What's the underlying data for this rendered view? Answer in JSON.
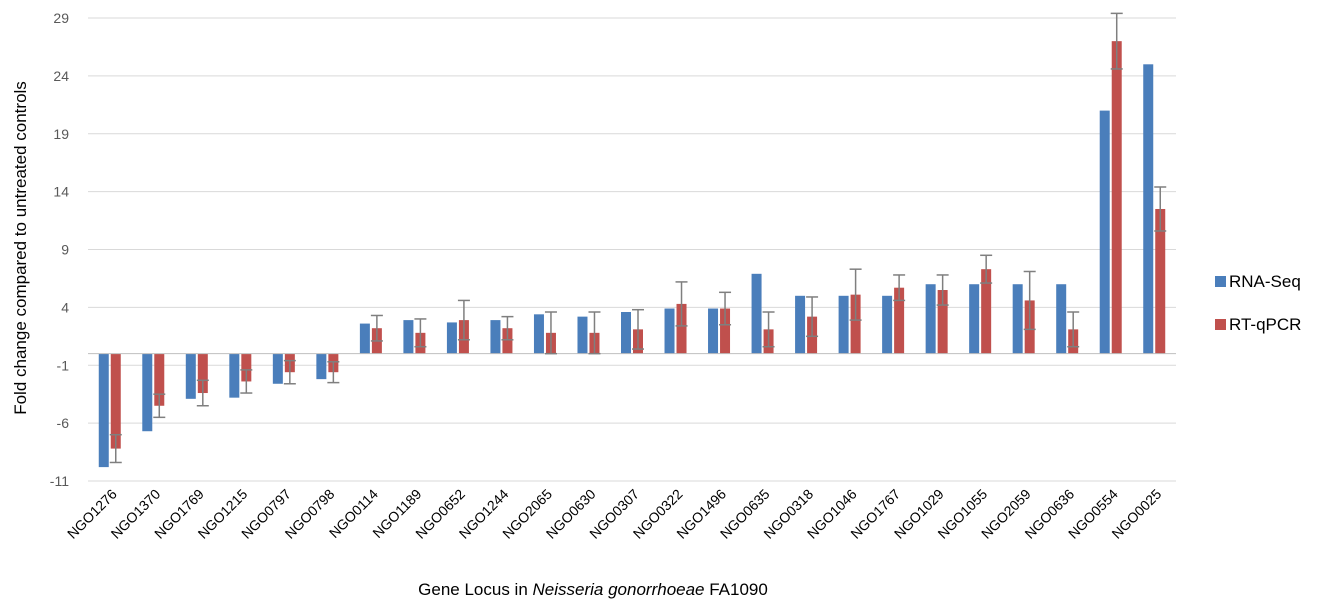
{
  "chart_data": {
    "type": "bar",
    "categories": [
      "NGO1276",
      "NGO1370",
      "NGO1769",
      "NGO1215",
      "NGO0797",
      "NGO0798",
      "NGO0114",
      "NGO1189",
      "NGO0652",
      "NGO1244",
      "NGO2065",
      "NGO0630",
      "NGO0307",
      "NGO0322",
      "NGO1496",
      "NGO0635",
      "NGO0318",
      "NGO1046",
      "NGO1767",
      "NGO1029",
      "NGO1055",
      "NGO2059",
      "NGO0636",
      "NGO0554",
      "NGO0025"
    ],
    "series": [
      {
        "name": "RNA-Seq",
        "values": [
          -9.8,
          -6.7,
          -3.9,
          -3.8,
          -2.6,
          -2.2,
          2.6,
          2.9,
          2.7,
          2.9,
          3.4,
          3.2,
          3.6,
          3.9,
          3.9,
          6.9,
          5.0,
          5.0,
          5.0,
          6.0,
          6.0,
          6.0,
          6.0,
          21.0,
          25.0
        ],
        "errors": null
      },
      {
        "name": "RT-qPCR",
        "values": [
          -8.2,
          -4.5,
          -3.4,
          -2.4,
          -1.6,
          -1.6,
          2.2,
          1.8,
          2.9,
          2.2,
          1.8,
          1.8,
          2.1,
          4.3,
          3.9,
          2.1,
          3.2,
          5.1,
          5.7,
          5.5,
          7.3,
          4.6,
          2.1,
          27.0,
          12.5
        ],
        "errors": [
          1.2,
          1.0,
          1.1,
          1.0,
          1.0,
          0.9,
          1.1,
          1.2,
          1.7,
          1.0,
          1.8,
          1.8,
          1.7,
          1.9,
          1.4,
          1.5,
          1.7,
          2.2,
          1.1,
          1.3,
          1.2,
          2.5,
          1.5,
          2.4,
          1.9
        ]
      }
    ],
    "colors": {
      "RNA-Seq": "#4a7ebb",
      "RT-qPCR": "#c0504d",
      "error_bar": "#7f7f7f",
      "grid": "#d9d9d9"
    },
    "ylim": [
      -11,
      29
    ],
    "yticks": [
      "29",
      "24",
      "19",
      "14",
      "9",
      "4",
      "-1",
      "-6",
      "-11"
    ],
    "ylabel": "Fold change compared to untreated controls",
    "xlabel_parts": {
      "prefix": "Gene Locus in ",
      "italic": "Neisseria gonorrhoeae",
      "suffix": " FA1090"
    },
    "legend_position": "right",
    "grid": true
  }
}
